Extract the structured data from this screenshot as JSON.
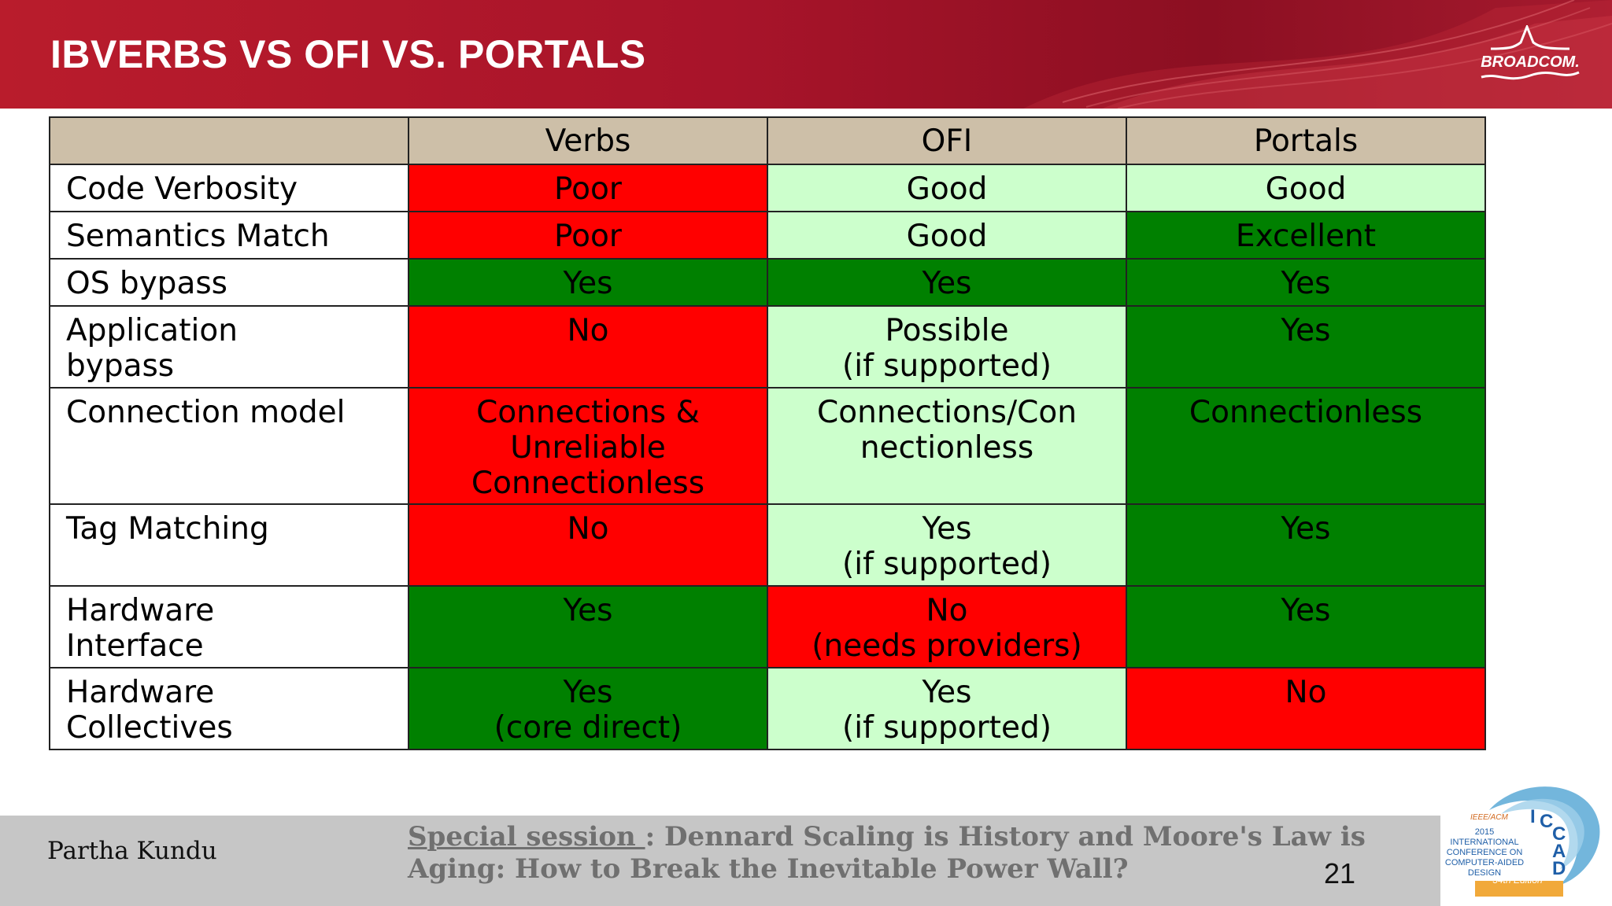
{
  "slide": {
    "title": "IBVERBS VS OFI VS. PORTALS",
    "logo_text": "BROADCOM."
  },
  "table": {
    "headers": [
      "",
      "Verbs",
      "OFI",
      "Portals"
    ],
    "rows": [
      {
        "label": "Code Verbosity",
        "cells": [
          {
            "text": "Poor",
            "color": "#ff0000"
          },
          {
            "text": "Good",
            "color": "#ccffcc"
          },
          {
            "text": "Good",
            "color": "#ccffcc"
          }
        ]
      },
      {
        "label": "Semantics Match",
        "cells": [
          {
            "text": "Poor",
            "color": "#ff0000"
          },
          {
            "text": "Good",
            "color": "#ccffcc"
          },
          {
            "text": "Excellent",
            "color": "#008000"
          }
        ]
      },
      {
        "label": "OS bypass",
        "cells": [
          {
            "text": "Yes",
            "color": "#008000"
          },
          {
            "text": "Yes",
            "color": "#008000"
          },
          {
            "text": "Yes",
            "color": "#008000"
          }
        ]
      },
      {
        "label": "Application\nbypass",
        "cells": [
          {
            "text": "No",
            "color": "#ff0000"
          },
          {
            "text": "Possible\n(if supported)",
            "color": "#ccffcc"
          },
          {
            "text": "Yes",
            "color": "#008000"
          }
        ]
      },
      {
        "label": "Connection model",
        "cells": [
          {
            "text": "Connections &\nUnreliable\nConnectionless",
            "color": "#ff0000"
          },
          {
            "text": "Connections/Con\nnectionless",
            "color": "#ccffcc"
          },
          {
            "text": "Connectionless",
            "color": "#008000"
          }
        ]
      },
      {
        "label": "Tag Matching",
        "cells": [
          {
            "text": "No",
            "color": "#ff0000"
          },
          {
            "text": "Yes\n(if supported)",
            "color": "#ccffcc"
          },
          {
            "text": "Yes",
            "color": "#008000"
          }
        ]
      },
      {
        "label": "Hardware\nInterface",
        "cells": [
          {
            "text": "Yes",
            "color": "#008000"
          },
          {
            "text": "No\n(needs providers)",
            "color": "#ff0000"
          },
          {
            "text": "Yes",
            "color": "#008000"
          }
        ]
      },
      {
        "label": "Hardware\nCollectives",
        "cells": [
          {
            "text": "Yes\n(core direct)",
            "color": "#008000"
          },
          {
            "text": "Yes\n(if supported)",
            "color": "#ccffcc"
          },
          {
            "text": "No",
            "color": "#ff0000"
          }
        ]
      }
    ]
  },
  "footer": {
    "author": "Partha Kundu",
    "session_lead": "Special session ",
    "session_text": ": Dennard Scaling is History and Moore's Law is Aging: How to Break the Inevitable Power Wall?",
    "page_number": "21"
  },
  "conference_logo": {
    "ieee": "IEEE/ACM",
    "lines": [
      "2015 INTERNATIONAL",
      "CONFERENCE ON",
      "COMPUTER-AIDED",
      "DESIGN"
    ],
    "letters": [
      "I",
      "C",
      "C",
      "A",
      "D"
    ],
    "edition": "34th Edition"
  }
}
